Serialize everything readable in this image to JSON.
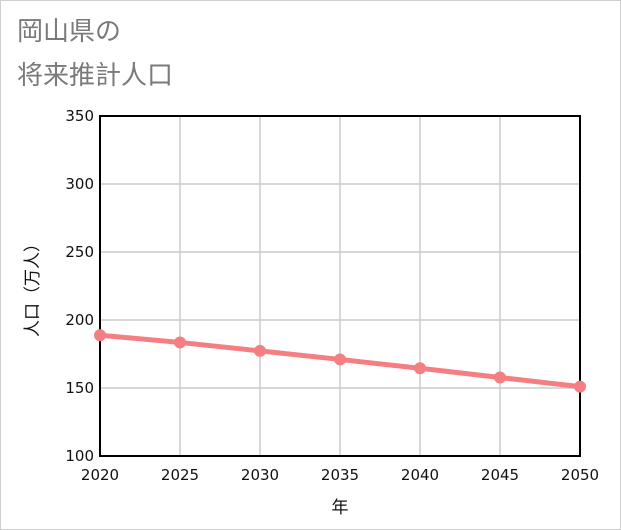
{
  "chart_data": {
    "type": "line",
    "title_lines": [
      "岡山県の",
      "将来推計人口"
    ],
    "xlabel": "年",
    "ylabel": "人口（万人）",
    "x": [
      2020,
      2025,
      2030,
      2035,
      2040,
      2045,
      2050
    ],
    "x_tick_labels": [
      "2020",
      "2025",
      "2030",
      "2035",
      "2040",
      "2045",
      "2050"
    ],
    "ylim": [
      100,
      350
    ],
    "y_ticks": [
      100,
      150,
      200,
      250,
      300,
      350
    ],
    "y_tick_labels": [
      "100",
      "150",
      "200",
      "250",
      "300",
      "350"
    ],
    "grid": true,
    "series": [
      {
        "name": "岡山県",
        "color": "#f47f82",
        "values": [
          188.8,
          183.5,
          177.3,
          171.0,
          164.5,
          157.7,
          151.0
        ]
      }
    ]
  }
}
